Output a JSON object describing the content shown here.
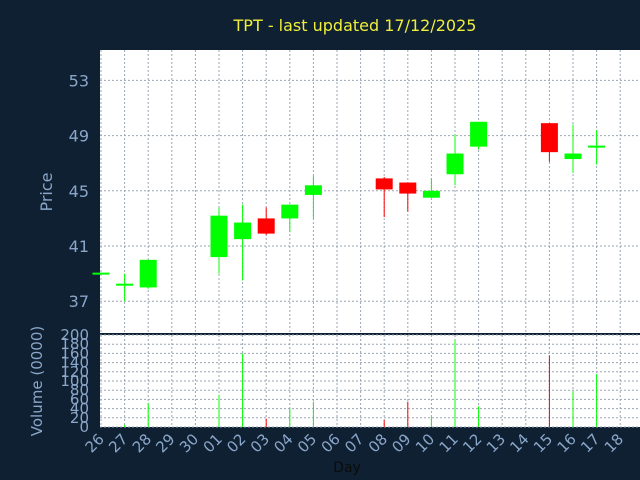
{
  "chart_data": {
    "type": "candlestick",
    "title": "TPT - last updated 17/12/2025",
    "xlabel": "Day",
    "price_panel": {
      "ylabel": "Price",
      "yticks": [
        "37",
        "41",
        "45",
        "49",
        "53"
      ],
      "ylim": [
        34.7,
        55.2
      ]
    },
    "volume_panel": {
      "ylabel": "Volume (0000)",
      "yticks": [
        "0",
        "20",
        "40",
        "60",
        "80",
        "100",
        "120",
        "140",
        "160",
        "180",
        "200"
      ],
      "ylim": [
        0,
        200
      ]
    },
    "x_tick_labels": [
      "26",
      "27",
      "28",
      "29",
      "30",
      "01",
      "02",
      "03",
      "04",
      "05",
      "06",
      "07",
      "08",
      "09",
      "10",
      "11",
      "12",
      "13",
      "14",
      "15",
      "16",
      "17",
      "18"
    ],
    "candles": [
      {
        "day": "26",
        "open": 39.0,
        "high": 39.0,
        "low": 39.0,
        "close": 39.0,
        "volume": 0
      },
      {
        "day": "27",
        "open": 38.2,
        "high": 39.0,
        "low": 37.0,
        "close": 38.2,
        "volume": 5
      },
      {
        "day": "28",
        "open": 38.0,
        "high": 40.0,
        "low": 37.9,
        "close": 40.0,
        "volume": 52
      },
      {
        "day": "01",
        "open": 40.2,
        "high": 43.8,
        "low": 39.0,
        "close": 43.2,
        "volume": 70
      },
      {
        "day": "02",
        "open": 41.5,
        "high": 44.0,
        "low": 38.5,
        "close": 42.7,
        "volume": 160
      },
      {
        "day": "03",
        "open": 43.0,
        "high": 43.8,
        "low": 41.8,
        "close": 41.9,
        "volume": 18
      },
      {
        "day": "04",
        "open": 43.0,
        "high": 44.0,
        "low": 42.0,
        "close": 44.0,
        "volume": 40
      },
      {
        "day": "05",
        "open": 44.7,
        "high": 46.1,
        "low": 43.0,
        "close": 45.4,
        "volume": 55
      },
      {
        "day": "08",
        "open": 45.9,
        "high": 46.0,
        "low": 43.1,
        "close": 45.1,
        "volume": 15
      },
      {
        "day": "09",
        "open": 45.6,
        "high": 45.6,
        "low": 43.5,
        "close": 44.8,
        "volume": 55
      },
      {
        "day": "10",
        "open": 44.5,
        "high": 45.9,
        "low": 44.5,
        "close": 45.0,
        "volume": 22
      },
      {
        "day": "11",
        "open": 46.2,
        "high": 49.1,
        "low": 45.4,
        "close": 47.7,
        "volume": 190
      },
      {
        "day": "12",
        "open": 48.2,
        "high": 50.0,
        "low": 48.0,
        "close": 50.0,
        "volume": 45
      },
      {
        "day": "15",
        "open": 49.9,
        "high": 49.9,
        "low": 47.1,
        "close": 47.8,
        "volume": 155
      },
      {
        "day": "16",
        "open": 47.3,
        "high": 49.8,
        "low": 46.3,
        "close": 47.7,
        "volume": 78
      },
      {
        "day": "17",
        "open": 48.1,
        "high": 49.4,
        "low": 46.9,
        "close": 48.2,
        "volume": 115
      }
    ],
    "colors": {
      "background": "#0f2033",
      "plot_background": "#ffffff",
      "grid": "#9aa6b4",
      "axis_text": "#8aa6c8",
      "title": "#f0ee3a",
      "up": "#00ff00",
      "down": "#ff0000"
    },
    "grid": true
  }
}
